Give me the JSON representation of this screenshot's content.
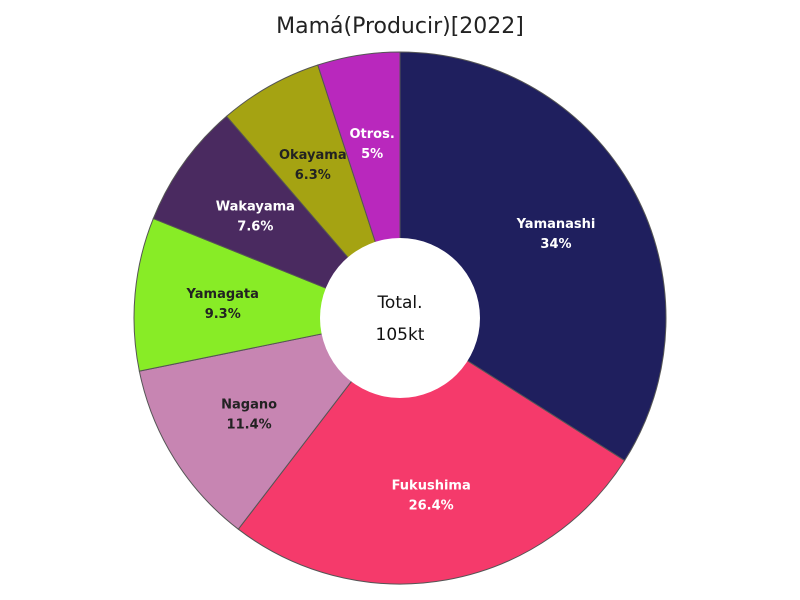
{
  "chart_data": {
    "type": "pie",
    "title": "Mamá(Producir)[2022]",
    "center_label": "Total.",
    "center_value": "105kt",
    "slices": [
      {
        "label": "Yamanashi",
        "value": 34,
        "value_label": "34%",
        "color": "#1f1f5e",
        "text_color": "#ffffff"
      },
      {
        "label": "Fukushima",
        "value": 26.4,
        "value_label": "26.4%",
        "color": "#f53a6b",
        "text_color": "#ffffff"
      },
      {
        "label": "Nagano",
        "value": 11.4,
        "value_label": "11.4%",
        "color": "#c785b2",
        "text_color": "#222222"
      },
      {
        "label": "Yamagata",
        "value": 9.3,
        "value_label": "9.3%",
        "color": "#88ec26",
        "text_color": "#222222"
      },
      {
        "label": "Wakayama",
        "value": 7.6,
        "value_label": "7.6%",
        "color": "#4a2a60",
        "text_color": "#ffffff"
      },
      {
        "label": "Okayama",
        "value": 6.3,
        "value_label": "6.3%",
        "color": "#a5a312",
        "text_color": "#222222"
      },
      {
        "label": "Otros.",
        "value": 5,
        "value_label": "5%",
        "color": "#b928bd",
        "text_color": "#ffffff"
      }
    ]
  }
}
